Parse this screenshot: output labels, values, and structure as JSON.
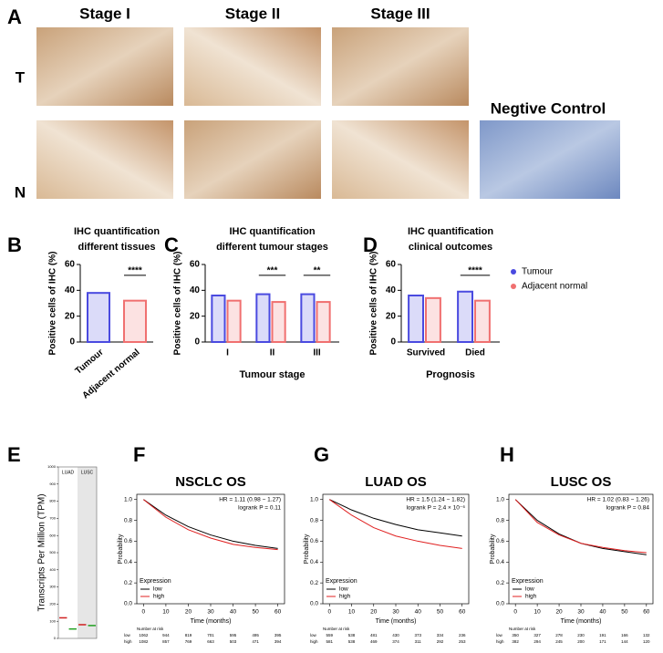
{
  "figure_label": "A",
  "ihc": {
    "stages": [
      "Stage I",
      "Stage II",
      "Stage III"
    ],
    "rows": [
      "T",
      "N"
    ],
    "control": "Negtive Control"
  },
  "chart_data": [
    {
      "type": "bar",
      "panel": "B",
      "title": [
        "IHC quantification",
        "different tissues"
      ],
      "ylabel": "Positive cells of IHC (%)",
      "categories": [
        "Tumour",
        "Adjacent normal"
      ],
      "values": [
        38,
        32
      ],
      "colors": [
        "#4a4ae0",
        "#f07070"
      ],
      "significance": [
        null,
        "****"
      ],
      "ylim": [
        0,
        60
      ],
      "yticks": [
        0,
        20,
        40,
        60
      ]
    },
    {
      "type": "bar",
      "panel": "C",
      "title": [
        "IHC quantification",
        "different tumour stages"
      ],
      "ylabel": "Positive cells of IHC (%)",
      "xlabel": "Tumour stage",
      "categories": [
        "I",
        "II",
        "III"
      ],
      "series": [
        {
          "color": "#4a4ae0",
          "values": [
            36,
            37,
            37
          ]
        },
        {
          "color": "#f07070",
          "values": [
            32,
            31,
            31
          ]
        }
      ],
      "significance": [
        null,
        "***",
        "**"
      ],
      "ylim": [
        0,
        60
      ],
      "yticks": [
        0,
        20,
        40,
        60
      ]
    },
    {
      "type": "bar",
      "panel": "D",
      "title": [
        "IHC quantification",
        "clinical outcomes"
      ],
      "ylabel": "Positive cells of IHC (%)",
      "xlabel": "Prognosis",
      "categories": [
        "Survived",
        "Died"
      ],
      "series": [
        {
          "name": "Tumour",
          "color": "#4a4ae0",
          "values": [
            36,
            39
          ]
        },
        {
          "name": "Adjacent normal",
          "color": "#f07070",
          "values": [
            34,
            32
          ]
        }
      ],
      "significance": [
        null,
        "****"
      ],
      "legend": "right",
      "ylim": [
        0,
        60
      ],
      "yticks": [
        0,
        20,
        40,
        60
      ]
    },
    {
      "type": "strip",
      "panel": "E",
      "ylabel": "Transcripts Per Million (TPM)",
      "groups": [
        "LUAD",
        "LUSC"
      ],
      "values": [
        120,
        55,
        80,
        75
      ],
      "colors": [
        "#d02020",
        "#20a020",
        "#d02020",
        "#20a020"
      ],
      "ylim": [
        0,
        1000
      ],
      "yticks": [
        0,
        100,
        200,
        300,
        400,
        500,
        600,
        700,
        800,
        900,
        1000
      ]
    },
    {
      "type": "line",
      "panel": "F",
      "title": "NSCLC OS",
      "annotations": [
        "HR = 1.11 (0.98 − 1.27)",
        "logrank P = 0.11"
      ],
      "xlabel": "Time (months)",
      "ylabel": "Probability",
      "legend_title": "Expression",
      "x": [
        0,
        10,
        20,
        30,
        40,
        50,
        60
      ],
      "series": [
        {
          "name": "low",
          "color": "#000000",
          "values": [
            1,
            0.85,
            0.74,
            0.66,
            0.6,
            0.56,
            0.53
          ]
        },
        {
          "name": "high",
          "color": "#e02020",
          "values": [
            1,
            0.83,
            0.71,
            0.63,
            0.57,
            0.54,
            0.52
          ]
        }
      ],
      "xlim": [
        -3,
        63
      ],
      "ylim": [
        0,
        1.05
      ],
      "xticks": [
        0,
        10,
        20,
        30,
        40,
        50,
        60
      ],
      "yticks": [
        {
          "value": 0,
          "label": "0.0"
        },
        0.2,
        0.4,
        0.6,
        0.8,
        {
          "value": 1,
          "label": "1.0"
        }
      ],
      "risk_table": {
        "title": "Number at risk",
        "rows": [
          {
            "name": "low",
            "values": [
              1062,
              944,
              819,
              701,
              595,
              495,
              395
            ]
          },
          {
            "name": "high",
            "values": [
              1082,
              857,
              769,
              663,
              503,
              471,
              394
            ]
          }
        ]
      }
    },
    {
      "type": "line",
      "panel": "G",
      "title": "LUAD OS",
      "annotations": [
        "HR = 1.5 (1.24 − 1.82)",
        "logrank P = 2.4 × 10⁻⁶"
      ],
      "xlabel": "Time (months)",
      "ylabel": "Probability",
      "legend_title": "Expression",
      "x": [
        0,
        10,
        20,
        30,
        40,
        50,
        60
      ],
      "series": [
        {
          "name": "low",
          "color": "#000000",
          "values": [
            1,
            0.9,
            0.82,
            0.76,
            0.71,
            0.68,
            0.65
          ]
        },
        {
          "name": "high",
          "color": "#e02020",
          "values": [
            1,
            0.85,
            0.73,
            0.65,
            0.6,
            0.56,
            0.53
          ]
        }
      ],
      "xlim": [
        -3,
        63
      ],
      "ylim": [
        0,
        1.05
      ],
      "xticks": [
        0,
        10,
        20,
        30,
        40,
        50,
        60
      ],
      "yticks": [
        {
          "value": 0,
          "label": "0.0"
        },
        0.2,
        0.4,
        0.6,
        0.8,
        {
          "value": 1,
          "label": "1.0"
        }
      ],
      "risk_table": {
        "title": "Number at risk",
        "rows": [
          {
            "name": "low",
            "values": [
              559,
              538,
              481,
              430,
              373,
              334,
              236
            ]
          },
          {
            "name": "high",
            "values": [
              581,
              538,
              469,
              374,
              311,
              292,
              253
            ]
          }
        ]
      }
    },
    {
      "type": "line",
      "panel": "H",
      "title": "LUSC OS",
      "annotations": [
        "HR = 1.02 (0.83 − 1.26)",
        "logrank P = 0.84"
      ],
      "xlabel": "Time (months)",
      "ylabel": "Probability",
      "legend_title": "Expression",
      "x": [
        0,
        10,
        20,
        30,
        40,
        50,
        60
      ],
      "series": [
        {
          "name": "low",
          "color": "#000000",
          "values": [
            1,
            0.8,
            0.67,
            0.58,
            0.53,
            0.5,
            0.47
          ]
        },
        {
          "name": "high",
          "color": "#e02020",
          "values": [
            1,
            0.78,
            0.66,
            0.58,
            0.54,
            0.51,
            0.49
          ]
        }
      ],
      "xlim": [
        -3,
        63
      ],
      "ylim": [
        0,
        1.05
      ],
      "xticks": [
        0,
        10,
        20,
        30,
        40,
        50,
        60
      ],
      "yticks": [
        {
          "value": 0,
          "label": "0.0"
        },
        0.2,
        0.4,
        0.6,
        0.8,
        {
          "value": 1,
          "label": "1.0"
        }
      ],
      "risk_table": {
        "title": "Number at risk",
        "rows": [
          {
            "name": "low",
            "values": [
              350,
              327,
              278,
              230,
              191,
              166,
              132
            ]
          },
          {
            "name": "high",
            "values": [
              382,
              294,
              245,
              200,
              171,
              144,
              120
            ]
          }
        ]
      }
    }
  ]
}
